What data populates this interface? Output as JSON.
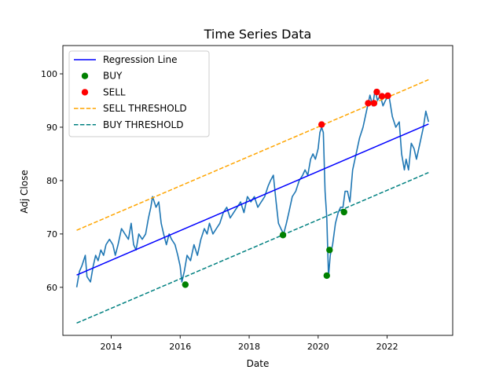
{
  "chart_data": {
    "type": "line",
    "title": "Time Series Data",
    "xlabel": "Date",
    "ylabel": "Adj Close",
    "xlim": [
      2012.6,
      2023.9
    ],
    "ylim": [
      51,
      105.3
    ],
    "x_ticks": [
      2014,
      2016,
      2018,
      2020,
      2022
    ],
    "y_ticks": [
      60,
      70,
      80,
      90,
      100
    ],
    "grid": false,
    "legend_position": "top-left",
    "series": [
      {
        "name": "Adj Close",
        "color": "#1f77b4",
        "x": [
          2013.0,
          2013.08,
          2013.15,
          2013.25,
          2013.3,
          2013.4,
          2013.48,
          2013.55,
          2013.62,
          2013.7,
          2013.78,
          2013.85,
          2013.95,
          2014.05,
          2014.12,
          2014.2,
          2014.3,
          2014.4,
          2014.5,
          2014.58,
          2014.65,
          2014.72,
          2014.8,
          2014.9,
          2015.0,
          2015.08,
          2015.15,
          2015.2,
          2015.3,
          2015.38,
          2015.45,
          2015.52,
          2015.6,
          2015.68,
          2015.75,
          2015.85,
          2015.93,
          2016.0,
          2016.05,
          2016.12,
          2016.2,
          2016.3,
          2016.4,
          2016.5,
          2016.6,
          2016.7,
          2016.78,
          2016.85,
          2016.95,
          2017.05,
          2017.15,
          2017.25,
          2017.35,
          2017.45,
          2017.55,
          2017.65,
          2017.75,
          2017.85,
          2017.95,
          2018.05,
          2018.15,
          2018.25,
          2018.35,
          2018.45,
          2018.55,
          2018.62,
          2018.7,
          2018.78,
          2018.85,
          2018.92,
          2019.0,
          2019.08,
          2019.15,
          2019.25,
          2019.35,
          2019.45,
          2019.55,
          2019.62,
          2019.7,
          2019.78,
          2019.85,
          2019.92,
          2020.0,
          2020.05,
          2020.1,
          2020.15,
          2020.2,
          2020.25,
          2020.3,
          2020.35,
          2020.42,
          2020.5,
          2020.58,
          2020.65,
          2020.72,
          2020.78,
          2020.85,
          2020.92,
          2021.0,
          2021.1,
          2021.2,
          2021.3,
          2021.4,
          2021.5,
          2021.58,
          2021.65,
          2021.72,
          2021.8,
          2021.88,
          2021.95,
          2022.05,
          2022.15,
          2022.25,
          2022.35,
          2022.42,
          2022.5,
          2022.55,
          2022.62,
          2022.7,
          2022.78,
          2022.85,
          2022.95,
          2023.05,
          2023.12,
          2023.2
        ],
        "y": [
          60,
          63,
          64,
          66,
          62,
          61,
          64,
          66,
          65,
          67,
          66,
          68,
          69,
          68,
          66,
          68,
          71,
          70,
          69,
          72,
          68,
          67,
          70,
          69,
          70,
          73,
          75,
          77,
          75,
          76,
          72,
          70,
          68,
          70,
          69,
          68,
          66,
          64,
          61,
          63,
          66,
          65,
          68,
          66,
          69,
          71,
          70,
          72,
          70,
          71,
          72,
          74,
          75,
          73,
          74,
          75,
          76,
          74,
          77,
          76,
          77,
          75,
          76,
          77,
          79,
          80,
          81,
          76,
          72,
          71,
          70,
          72,
          74,
          77,
          78,
          80,
          81,
          82,
          81,
          84,
          85,
          84,
          86,
          89,
          90,
          89,
          78,
          73,
          62,
          66,
          68,
          72,
          74,
          75,
          75,
          78,
          78,
          76,
          82,
          85,
          88,
          90,
          93,
          96,
          94,
          97,
          95,
          96,
          94,
          95,
          96,
          92,
          90,
          91,
          85,
          82,
          84,
          82,
          87,
          86,
          84,
          87,
          90,
          93,
          91
        ]
      }
    ],
    "regression_line": {
      "name": "Regression Line",
      "color": "#0000ff",
      "x": [
        2013.0,
        2023.2
      ],
      "y": [
        62.3,
        90.6
      ]
    },
    "sell_threshold": {
      "name": "SELL THRESHOLD",
      "color": "#ffa500",
      "x": [
        2013.0,
        2023.2
      ],
      "y": [
        70.7,
        98.9
      ]
    },
    "buy_threshold": {
      "name": "BUY THRESHOLD",
      "color": "#008080",
      "x": [
        2013.0,
        2023.2
      ],
      "y": [
        53.3,
        81.5
      ]
    },
    "buy_points": {
      "name": "BUY",
      "color": "#008000",
      "x": [
        2016.15,
        2018.98,
        2020.25,
        2020.33,
        2020.75
      ],
      "y": [
        60.5,
        69.8,
        62.2,
        67.0,
        74.1
      ]
    },
    "sell_points": {
      "name": "SELL",
      "color": "#ff0000",
      "x": [
        2020.1,
        2021.45,
        2021.62,
        2021.7,
        2021.85,
        2022.02
      ],
      "y": [
        90.5,
        94.5,
        94.5,
        96.6,
        95.8,
        95.9
      ]
    }
  }
}
